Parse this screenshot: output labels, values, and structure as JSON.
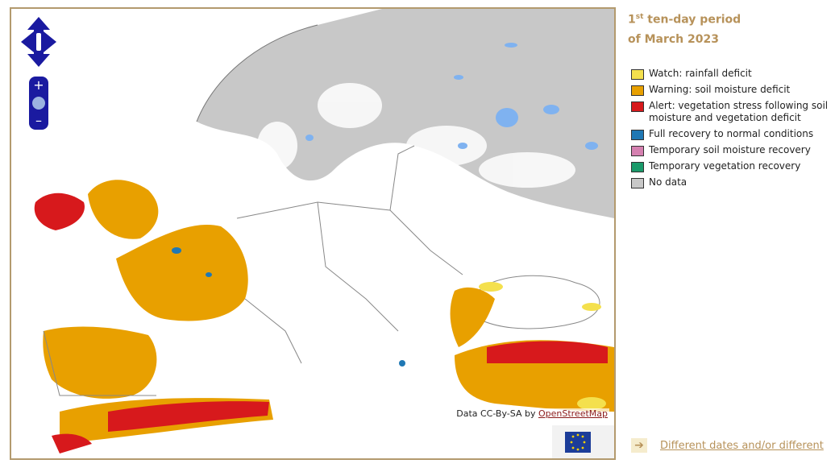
{
  "period": {
    "ordinal": "1",
    "ordinal_suffix": "st",
    "line1_rest": " ten-day period",
    "line2": "of March 2023"
  },
  "legend": [
    {
      "label": "Watch: rainfall deficit",
      "color": "#f4e04d"
    },
    {
      "label": "Warning: soil moisture deficit",
      "color": "#e8a000"
    },
    {
      "label": "Alert: vegetation stress following soil moisture and vegetation deficit",
      "color": "#d7191c"
    },
    {
      "label": "Full recovery to normal conditions",
      "color": "#1f78b4"
    },
    {
      "label": "Temporary soil moisture recovery",
      "color": "#d580b0"
    },
    {
      "label": "Temporary vegetation recovery",
      "color": "#1a9a6a"
    },
    {
      "label": "No data",
      "color": "#c8c8c8"
    }
  ],
  "attribution": {
    "prefix": "Data CC-By-SA by ",
    "link": "OpenStreetMap"
  },
  "bottom_link": "Different dates and/or different",
  "colors": {
    "nav": "#1a1aa0",
    "water": "#7fb2f0",
    "frame": "#b39a6e",
    "accent": "#b7925a"
  }
}
